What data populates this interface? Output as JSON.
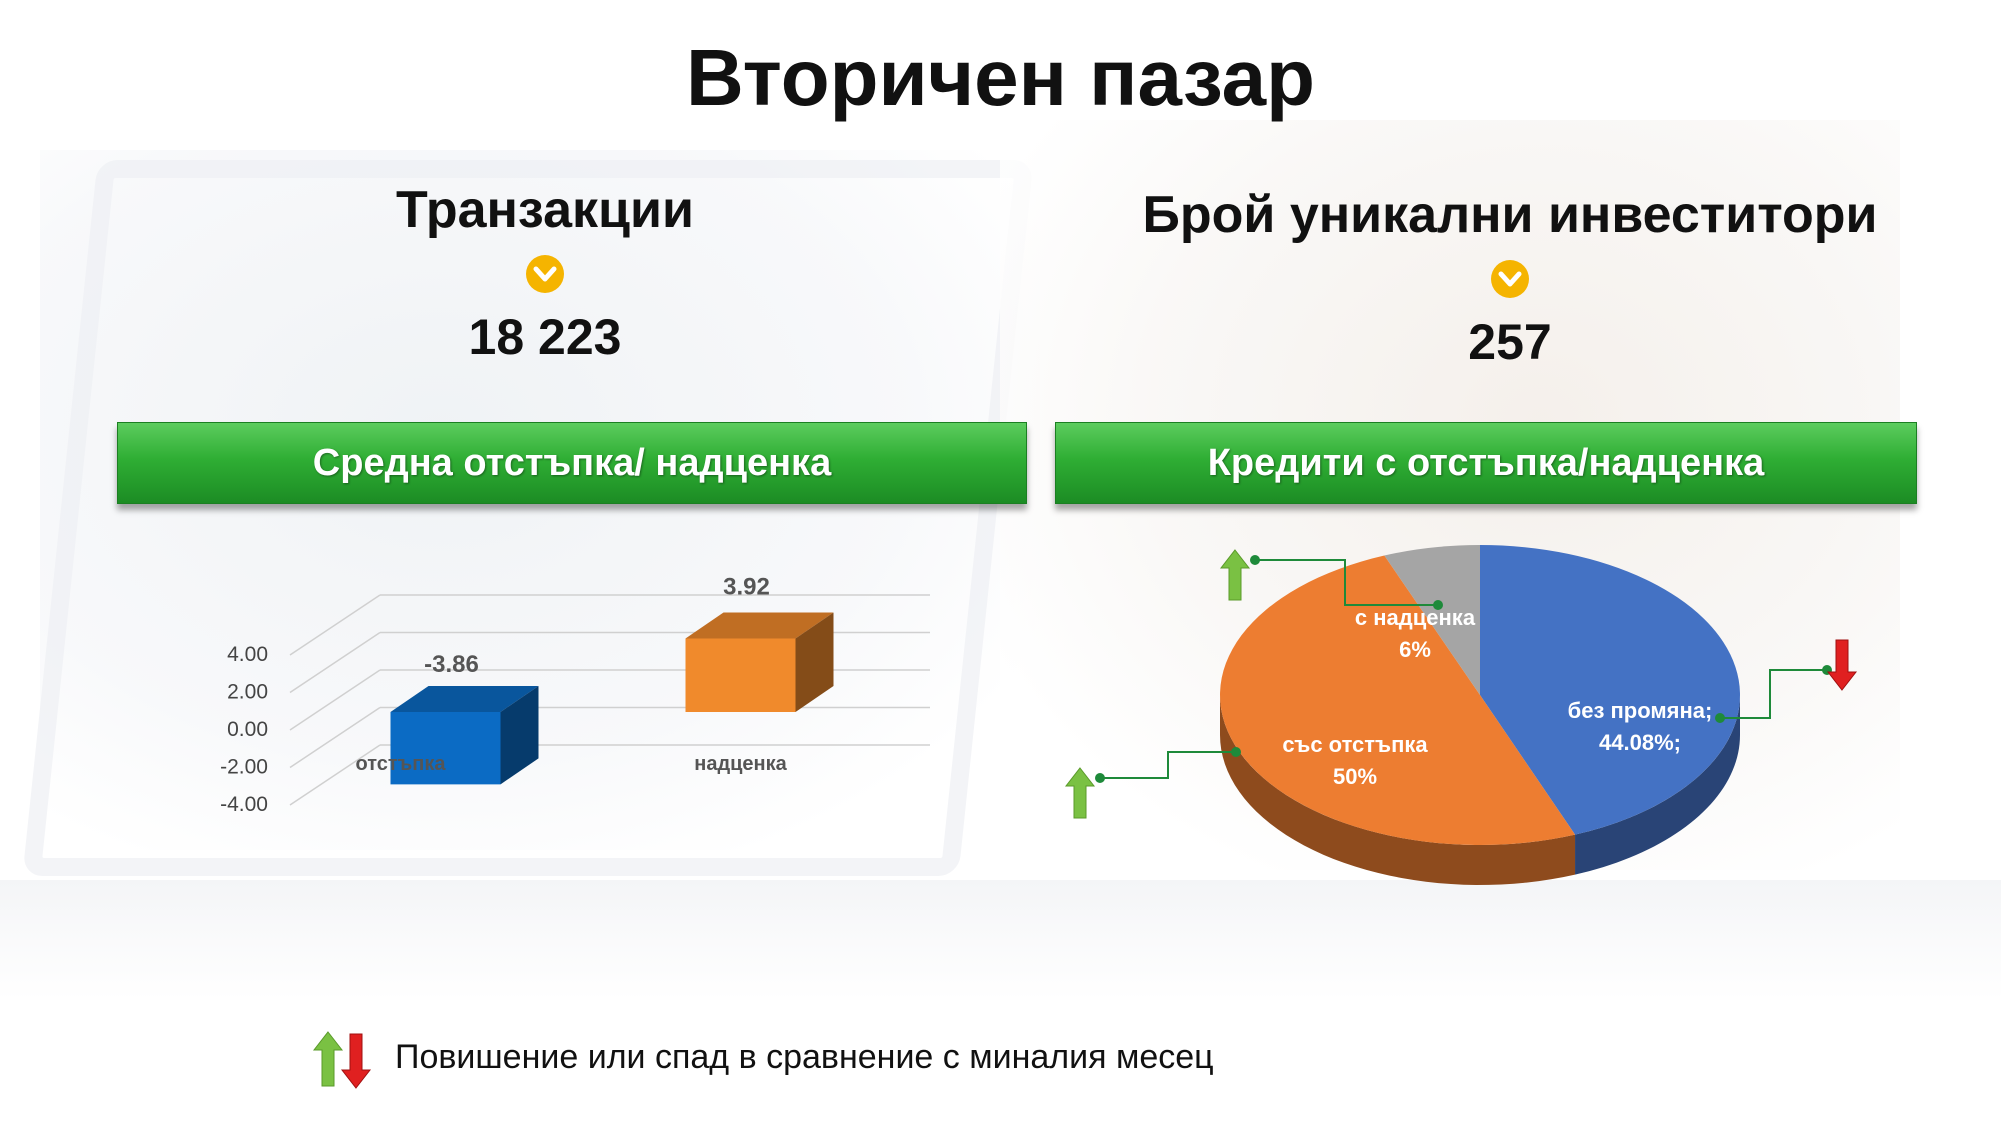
{
  "title": "Вторичен пазар",
  "stats": [
    {
      "label": "Транзакции",
      "value": "18 223",
      "trend_icon": "chevron-down-icon"
    },
    {
      "label": "Брой уникални инвеститори",
      "value": "257",
      "trend_icon": "chevron-down-icon"
    }
  ],
  "banners": {
    "left": "Средна отстъпка/ надценка",
    "right": "Кредити с отстъпка/надценка"
  },
  "colors": {
    "accent_green": "#2fae34",
    "chevron_yellow": "#f5b400",
    "arrow_up": "#7ac143",
    "arrow_down": "#e02020",
    "blue": "#4472c4",
    "orange": "#ed7d31",
    "gray": "#a5a5a5"
  },
  "chart_data": [
    {
      "type": "bar",
      "categories": [
        "отстъпка",
        "надценка"
      ],
      "values": [
        -3.86,
        3.92
      ],
      "data_labels": [
        "-3.86",
        "3.92"
      ],
      "tick_labels": [
        "4.00",
        "2.00",
        "0.00",
        "-2.00",
        "-4.00"
      ],
      "ylim": [
        -4,
        4
      ],
      "grid": true,
      "bar_colors": [
        "#0b6bc4",
        "#f08a2c"
      ],
      "title": "",
      "xlabel": "",
      "ylabel": ""
    },
    {
      "type": "pie",
      "categories": [
        "без промяна",
        "със отстъпка",
        "с надценка"
      ],
      "values": [
        44.08,
        50,
        6
      ],
      "data_labels": [
        "без промяна;\n44.08%;",
        "със отстъпка\n50%",
        "с надценка\n6%"
      ],
      "trends": [
        "down",
        "up",
        "up"
      ],
      "colors": [
        "#4472c4",
        "#ed7d31",
        "#a5a5a5"
      ],
      "title": ""
    }
  ],
  "legend": {
    "text": "Повишение или спад в сравнение с миналия месец",
    "icons": [
      "arrow-up-icon",
      "arrow-down-icon"
    ]
  }
}
